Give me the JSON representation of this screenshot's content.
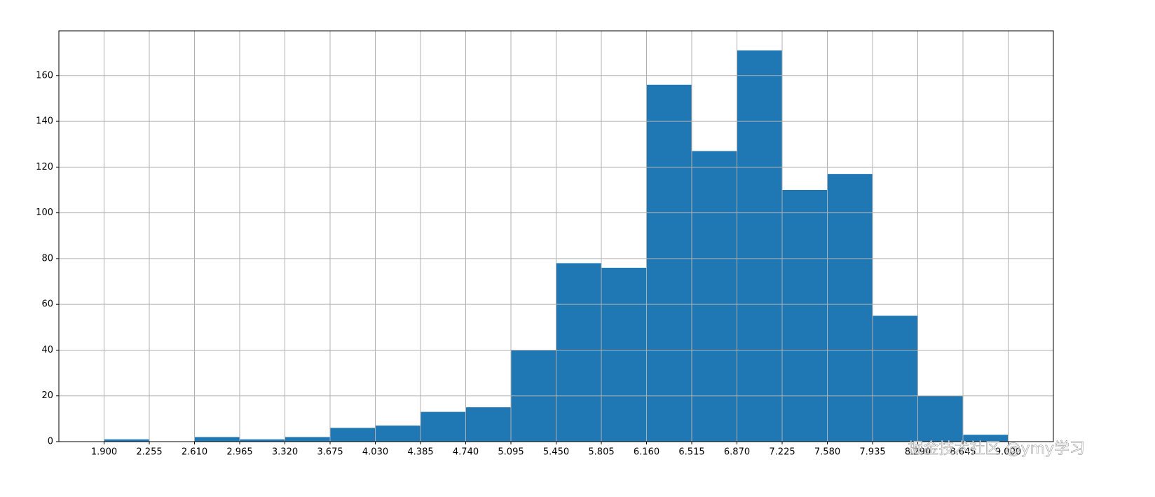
{
  "chart_data": {
    "type": "histogram",
    "bins": [
      1.9,
      2.255,
      2.61,
      2.965,
      3.32,
      3.675,
      4.03,
      4.385,
      4.74,
      5.095,
      5.45,
      5.805,
      6.16,
      6.515,
      6.87,
      7.225,
      7.58,
      7.935,
      8.29,
      8.645,
      9.0
    ],
    "counts": [
      1,
      0,
      2,
      1,
      2,
      6,
      7,
      13,
      15,
      40,
      78,
      76,
      156,
      127,
      171,
      110,
      117,
      55,
      20,
      3
    ],
    "color": "#1f77b4",
    "xlim": [
      1.545,
      9.355
    ],
    "ylim": [
      0,
      179.55
    ],
    "xticks": [
      {
        "value": 1.9,
        "label": "1.900"
      },
      {
        "value": 2.255,
        "label": "2.255"
      },
      {
        "value": 2.61,
        "label": "2.610"
      },
      {
        "value": 2.965,
        "label": "2.965"
      },
      {
        "value": 3.32,
        "label": "3.320"
      },
      {
        "value": 3.675,
        "label": "3.675"
      },
      {
        "value": 4.03,
        "label": "4.030"
      },
      {
        "value": 4.385,
        "label": "4.385"
      },
      {
        "value": 4.74,
        "label": "4.740"
      },
      {
        "value": 5.095,
        "label": "5.095"
      },
      {
        "value": 5.45,
        "label": "5.450"
      },
      {
        "value": 5.805,
        "label": "5.805"
      },
      {
        "value": 6.16,
        "label": "6.160"
      },
      {
        "value": 6.515,
        "label": "6.515"
      },
      {
        "value": 6.87,
        "label": "6.870"
      },
      {
        "value": 7.225,
        "label": "7.225"
      },
      {
        "value": 7.58,
        "label": "7.580"
      },
      {
        "value": 7.935,
        "label": "7.935"
      },
      {
        "value": 8.29,
        "label": "8.290"
      },
      {
        "value": 8.645,
        "label": "8.645"
      },
      {
        "value": 9.0,
        "label": "9.000"
      }
    ],
    "yticks": [
      0,
      20,
      40,
      60,
      80,
      100,
      120,
      140,
      160
    ],
    "grid": true
  },
  "watermark": "掘金技术社区 @ymy学习"
}
